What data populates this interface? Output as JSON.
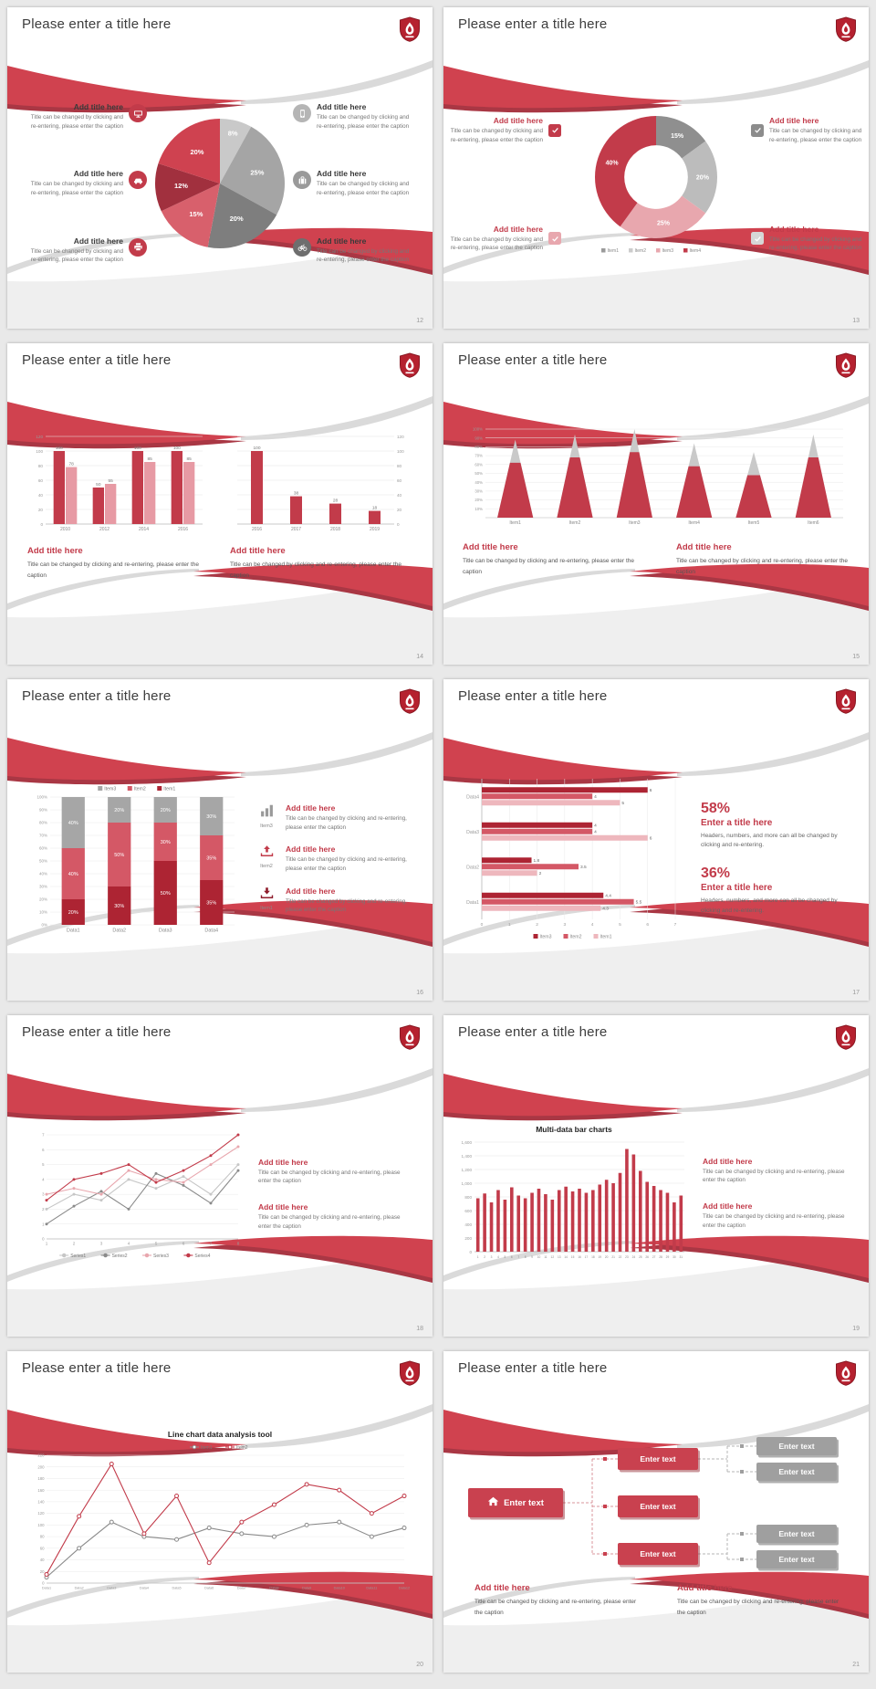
{
  "page": {
    "background": "#e9e9e9"
  },
  "common": {
    "slide_title": "Please enter a title here",
    "add_title": "Add title here",
    "caption": "Title can be changed by clicking and re-entering, please enter the caption",
    "caption_stats": "Headers, numbers, and more can all be changed by clicking and re-entering.",
    "enter_text": "Enter text",
    "enter_title": "Enter a title here",
    "accent_red": "#c23b4a"
  },
  "slides": [
    {
      "number": "12"
    },
    {
      "number": "13"
    },
    {
      "number": "14"
    },
    {
      "number": "15"
    },
    {
      "number": "16",
      "items": [
        {
          "label": "Item3"
        },
        {
          "label": "Item2"
        },
        {
          "label": "Item1"
        }
      ]
    },
    {
      "number": "17",
      "stats": [
        {
          "value": "58%"
        },
        {
          "value": "36%"
        }
      ]
    },
    {
      "number": "18"
    },
    {
      "number": "19"
    },
    {
      "number": "20"
    },
    {
      "number": "21"
    }
  ],
  "chart_data": [
    {
      "id": "pie12",
      "type": "pie",
      "values": [
        8,
        25,
        20,
        15,
        12,
        20
      ],
      "labels": [
        "8%",
        "25%",
        "20%",
        "15%",
        "12%",
        "20%"
      ],
      "colors": [
        "#c9c9c9",
        "#a5a5a5",
        "#7e7e7e",
        "#d8606c",
        "#a1303e",
        "#cf4250"
      ]
    },
    {
      "id": "donut13",
      "type": "donut",
      "values": [
        15,
        20,
        25,
        40
      ],
      "labels": [
        "15%",
        "20%",
        "25%",
        "40%"
      ],
      "colors": [
        "#8f8f8f",
        "#bcbcbc",
        "#e8a7ae",
        "#c23b4a"
      ],
      "legend": [
        {
          "label": "Item1",
          "color": "#9a9a9a"
        },
        {
          "label": "Item2",
          "color": "#cccccc"
        },
        {
          "label": "Item3",
          "color": "#e8a7ae"
        },
        {
          "label": "Item4",
          "color": "#c23b4a"
        }
      ]
    },
    {
      "id": "bar14a",
      "type": "bar",
      "axis": "left",
      "value_labels": true,
      "ylim": [
        0,
        120
      ],
      "yticks": [
        0,
        20,
        40,
        60,
        80,
        100,
        120
      ],
      "categories": [
        "2010",
        "2012",
        "2014",
        "2016"
      ],
      "series": [
        {
          "name": "SeriesA",
          "color": "#c23b4a",
          "values": [
            100,
            50,
            100,
            100
          ]
        },
        {
          "name": "SeriesB",
          "color": "#e79aa4",
          "values": [
            78,
            55,
            85,
            85
          ]
        }
      ]
    },
    {
      "id": "bar14b",
      "type": "bar",
      "axis": "right",
      "value_labels": true,
      "ylim": [
        0,
        120
      ],
      "yticks": [
        0,
        20,
        40,
        60,
        80,
        100,
        120
      ],
      "categories": [
        "2016",
        "2017",
        "2018",
        "2019"
      ],
      "series": [
        {
          "name": "Series",
          "color": "#c23b4a",
          "values": [
            100,
            38,
            28,
            18
          ]
        }
      ]
    },
    {
      "id": "cone15",
      "type": "cone",
      "categories": [
        "Item1",
        "Item2",
        "Item3",
        "Item4",
        "Item5",
        "Item6"
      ],
      "total": [
        88,
        94,
        100,
        84,
        74,
        94
      ],
      "filled": [
        62,
        68,
        74,
        58,
        48,
        68
      ],
      "yticks": [
        "10%",
        "20%",
        "30%",
        "40%",
        "50%",
        "60%",
        "70%",
        "80%",
        "90%",
        "100%"
      ],
      "colors": {
        "filled": "#c23b4a",
        "tip": "#c9c9c9"
      }
    },
    {
      "id": "stack16",
      "type": "stacked_bar",
      "categories": [
        "Data1",
        "Data2",
        "Data3",
        "Data4"
      ],
      "yticks": [
        "0%",
        "10%",
        "20%",
        "30%",
        "40%",
        "50%",
        "60%",
        "70%",
        "80%",
        "90%",
        "100%"
      ],
      "legend_order": [
        "Item3",
        "Item2",
        "Item1"
      ],
      "series": [
        {
          "name": "Item1",
          "color": "#ad2433",
          "values": [
            20,
            30,
            50,
            35
          ]
        },
        {
          "name": "Item2",
          "color": "#d45866",
          "values": [
            40,
            50,
            30,
            35
          ]
        },
        {
          "name": "Item3",
          "color": "#a6a6a6",
          "values": [
            40,
            20,
            20,
            30
          ]
        }
      ]
    },
    {
      "id": "hbar17",
      "type": "hbar",
      "categories": [
        "Data1",
        "Data2",
        "Data3",
        "Data4"
      ],
      "xticks": [
        0,
        1,
        2,
        3,
        4,
        5,
        6,
        7
      ],
      "series": [
        {
          "name": "Item3",
          "color": "#ad2433",
          "values": [
            4.4,
            1.8,
            4,
            6
          ]
        },
        {
          "name": "Item2",
          "color": "#d45866",
          "values": [
            5.5,
            3.5,
            4,
            4
          ]
        },
        {
          "name": "Item1",
          "color": "#eeb7bd",
          "values": [
            4.3,
            2,
            6,
            5
          ]
        }
      ]
    },
    {
      "id": "line18",
      "type": "line",
      "x_labels": [
        "1",
        "2",
        "3",
        "4",
        "5",
        "6",
        "7",
        "8"
      ],
      "ylim": [
        0,
        7
      ],
      "yticks": [
        0,
        1,
        2,
        3,
        4,
        5,
        6,
        7
      ],
      "legend_position": "bottom",
      "series": [
        {
          "name": "Series1",
          "color": "#c6c6c6",
          "values": [
            2,
            3,
            2.6,
            4,
            3.4,
            4.2,
            3,
            5
          ]
        },
        {
          "name": "Series2",
          "color": "#8a8a8a",
          "values": [
            1,
            2.2,
            3.2,
            2,
            4.4,
            3.6,
            2.4,
            4.6
          ]
        },
        {
          "name": "Series3",
          "color": "#e8a7ae",
          "values": [
            3,
            3.4,
            3,
            4.6,
            4,
            3.8,
            5,
            6.2
          ]
        },
        {
          "name": "Series4",
          "color": "#c23b4a",
          "values": [
            2.6,
            4,
            4.4,
            5,
            3.8,
            4.6,
            5.6,
            7
          ]
        }
      ]
    },
    {
      "id": "bar19",
      "type": "bar",
      "title": "Multi-data bar charts",
      "axis": "left",
      "ylim": [
        0,
        1600
      ],
      "yticks": [
        0,
        200,
        400,
        600,
        800,
        1000,
        1200,
        1400,
        1600
      ],
      "categories": [
        "1",
        "2",
        "3",
        "4",
        "5",
        "6",
        "7",
        "8",
        "9",
        "10",
        "11",
        "12",
        "13",
        "14",
        "15",
        "16",
        "17",
        "18",
        "19",
        "20",
        "21",
        "22",
        "23",
        "24",
        "25",
        "26",
        "27",
        "28",
        "29",
        "30",
        "31"
      ],
      "series": [
        {
          "name": "Series",
          "color": "#c23b4a",
          "values": [
            780,
            850,
            720,
            900,
            760,
            940,
            820,
            780,
            860,
            920,
            840,
            760,
            900,
            950,
            880,
            920,
            860,
            900,
            980,
            1050,
            1000,
            1150,
            1500,
            1420,
            1180,
            1020,
            960,
            900,
            860,
            720,
            820
          ]
        }
      ]
    },
    {
      "id": "line20",
      "type": "line",
      "title": "Line chart data analysis tool",
      "x_labels": [
        "Data1",
        "Data2",
        "Data3",
        "Data4",
        "Data5",
        "Data6",
        "Data7",
        "Data8",
        "Data9",
        "Data10",
        "Data11",
        "Data12"
      ],
      "ylim": [
        0,
        220
      ],
      "yticks": [
        0,
        20,
        40,
        60,
        80,
        100,
        120,
        140,
        160,
        180,
        200,
        220
      ],
      "legend_position": "top",
      "marker_open": true,
      "series": [
        {
          "name": "Item1",
          "color": "#8a8a8a",
          "values": [
            10,
            60,
            105,
            80,
            75,
            95,
            85,
            80,
            100,
            105,
            80,
            95
          ]
        },
        {
          "name": "Item2",
          "color": "#c23b4a",
          "values": [
            15,
            115,
            205,
            85,
            150,
            35,
            105,
            135,
            170,
            160,
            120,
            150
          ]
        }
      ]
    }
  ]
}
